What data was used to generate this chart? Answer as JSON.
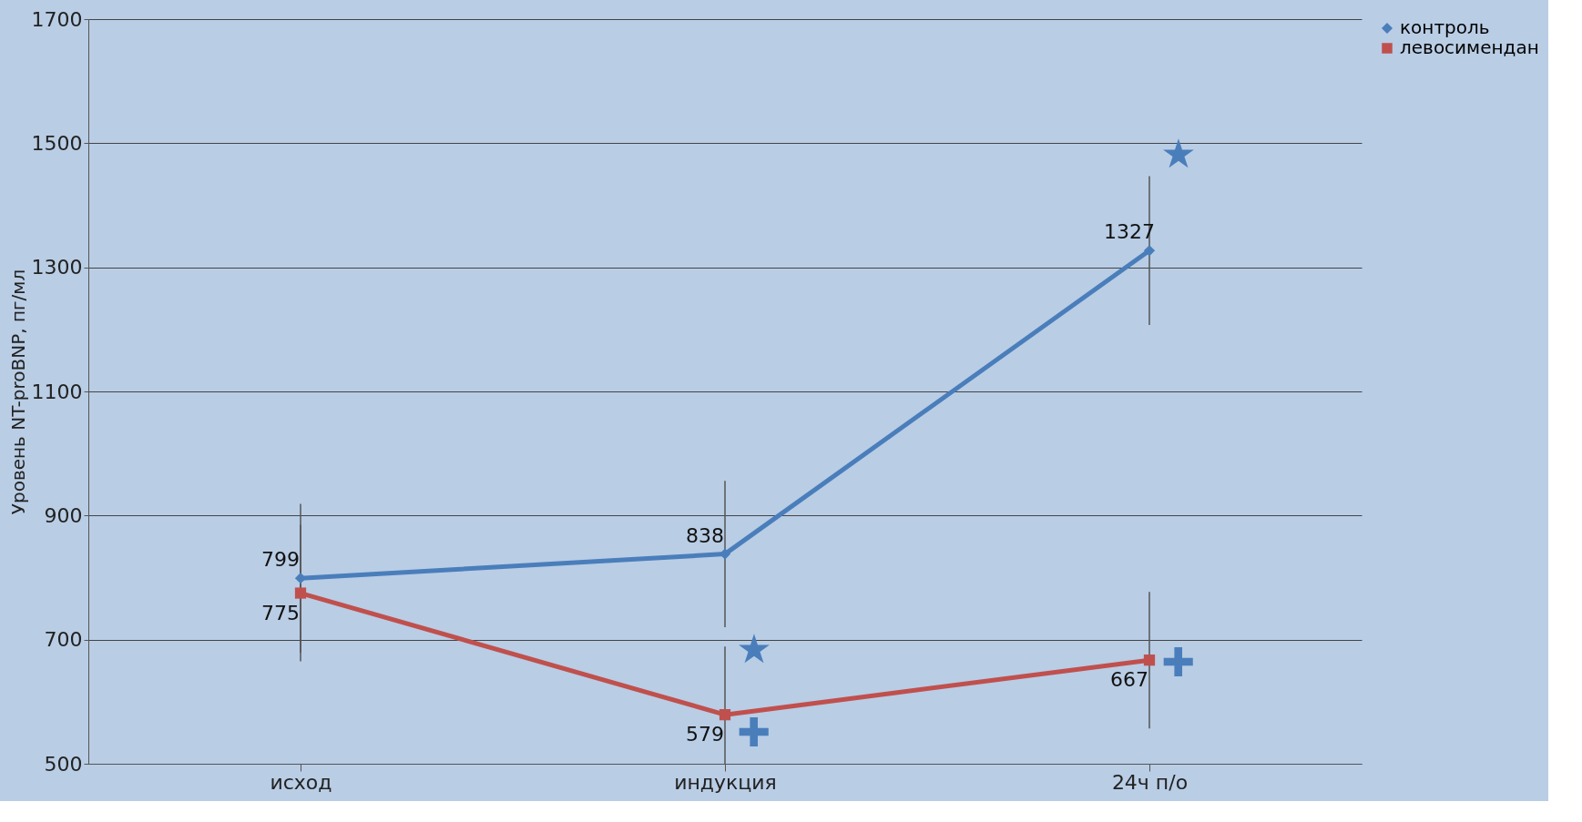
{
  "chart_data": {
    "type": "line",
    "ylabel": "Уровень NT-proBNP, пг/мл",
    "categories": [
      "исход",
      "индукция",
      "24ч п/о"
    ],
    "series": [
      {
        "name": "контроль",
        "color": "#4a7ebb",
        "marker": "diamond",
        "values": [
          799,
          838,
          1327
        ],
        "errors": [
          120,
          118,
          120
        ]
      },
      {
        "name": "левосимендан",
        "color": "#c0504d",
        "marker": "square",
        "values": [
          775,
          579,
          667
        ],
        "errors": [
          110,
          110,
          110
        ]
      }
    ],
    "ylim": [
      500,
      1700
    ],
    "yticks": [
      500,
      700,
      900,
      1100,
      1300,
      1500,
      1700
    ],
    "grid": "y",
    "legend": "right",
    "data_labels": true,
    "annotations": [
      {
        "text": "★",
        "x": "индукция",
        "y": 650
      },
      {
        "text": "★",
        "x": "24ч п/о",
        "y": 1447
      },
      {
        "text": "✚",
        "x": "индукция",
        "y": 515
      },
      {
        "text": "✚",
        "x": "24ч п/о",
        "y": 627
      }
    ]
  }
}
